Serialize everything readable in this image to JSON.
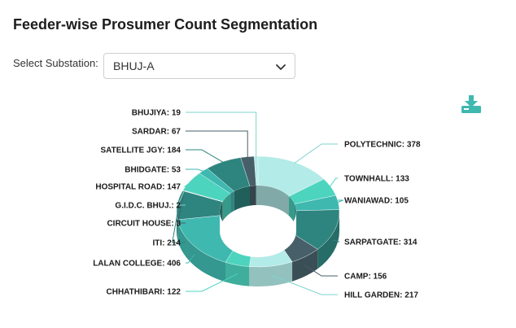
{
  "title": "Feeder-wise Prosumer Count Segmentation",
  "filter": {
    "label": "Select Substation:",
    "value": "BHUJ-A"
  },
  "icons": {
    "download": "download-icon",
    "dropdown": "chevron-down-icon"
  },
  "chart_data": {
    "type": "pie",
    "donut": true,
    "slices": [
      {
        "label": "POLYTECHNIC",
        "value": 378,
        "color": "#b3ebe8"
      },
      {
        "label": "TOWNHALL",
        "value": 133,
        "color": "#4dd4be"
      },
      {
        "label": "WANIAWAD",
        "value": 105,
        "color": "#3fb8b0"
      },
      {
        "label": "SARPATGATE",
        "value": 314,
        "color": "#2e847e"
      },
      {
        "label": "CAMP",
        "value": 156,
        "color": "#475f69"
      },
      {
        "label": "HILL GARDEN",
        "value": 217,
        "color": "#b3ebe8"
      },
      {
        "label": "CHHATHIBARI",
        "value": 122,
        "color": "#4dd4be"
      },
      {
        "label": "LALAN COLLEGE",
        "value": 406,
        "color": "#3fb8b0"
      },
      {
        "label": "ITI",
        "value": 214,
        "color": "#2e847e"
      },
      {
        "label": "CIRCUIT HOUSE",
        "value": 3,
        "color": "#475f69"
      },
      {
        "label": "G.I.D.C. BHUJ.",
        "value": 2,
        "color": "#b3ebe8"
      },
      {
        "label": "HOSPITAL ROAD",
        "value": 147,
        "color": "#4dd4be"
      },
      {
        "label": "BHIDGATE",
        "value": 53,
        "color": "#3fb8b0"
      },
      {
        "label": "SATELLITE JGY",
        "value": 184,
        "color": "#2e847e"
      },
      {
        "label": "SARDAR",
        "value": 67,
        "color": "#475f69"
      },
      {
        "label": "BHUJIYA",
        "value": 19,
        "color": "#b3ebe8"
      }
    ]
  }
}
